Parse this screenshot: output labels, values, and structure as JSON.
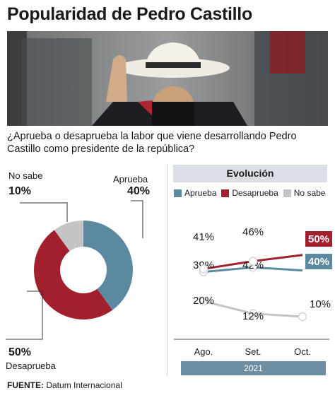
{
  "title": "Popularidad de Pedro Castillo",
  "question": "¿Aprueba o desaprueba la labor que viene desarrollando Pedro Castillo como presidente de la república?",
  "colors": {
    "aprueba": "#5b8aa0",
    "desaprueba": "#a21f2d",
    "no_sabe": "#c4c4c4"
  },
  "photo_icon": "president-photo",
  "chart_data": [
    {
      "type": "pie",
      "labels": [
        "Aprueba",
        "Desaprueba",
        "No sabe"
      ],
      "values": [
        40,
        50,
        10
      ],
      "display": [
        "40%",
        "50%",
        "10%"
      ]
    },
    {
      "type": "line",
      "title": "Evolución",
      "categories": [
        "Ago.",
        "Set.",
        "Oct."
      ],
      "xlabel": "2021",
      "series": [
        {
          "name": "Aprueba",
          "values": [
            39,
            42,
            40
          ],
          "labels": [
            "39%",
            "42%",
            "40%"
          ]
        },
        {
          "name": "Desaprueba",
          "values": [
            41,
            46,
            50
          ],
          "labels": [
            "41%",
            "46%",
            "50%"
          ]
        },
        {
          "name": "No sabe",
          "values": [
            20,
            12,
            10
          ],
          "labels": [
            "20%",
            "12%",
            "10%"
          ]
        }
      ],
      "legend": "top"
    }
  ],
  "source": {
    "label": "FUENTE:",
    "text": "Datum Internacional"
  }
}
